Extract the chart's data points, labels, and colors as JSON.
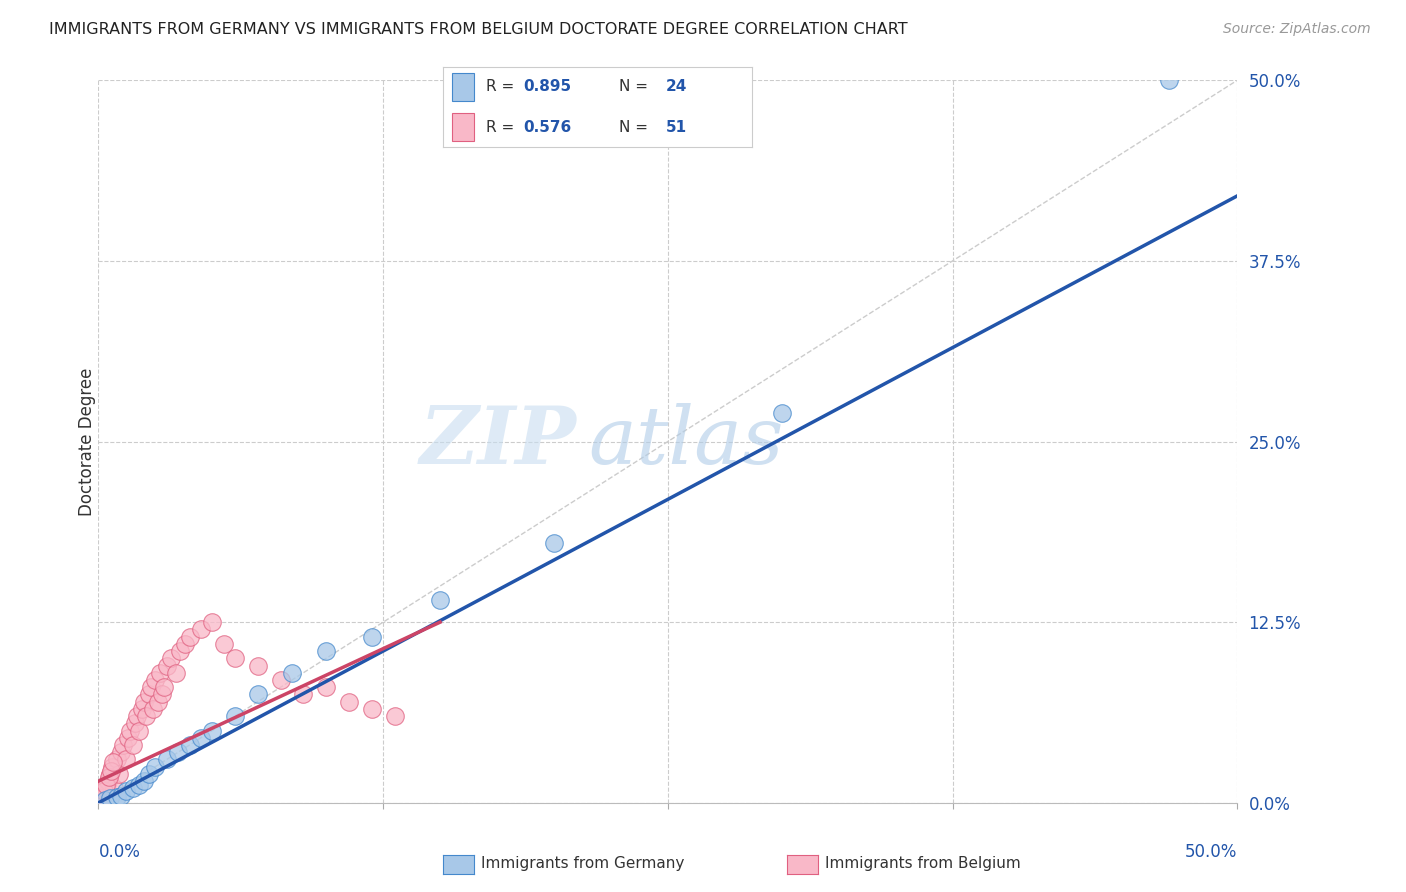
{
  "title": "IMMIGRANTS FROM GERMANY VS IMMIGRANTS FROM BELGIUM DOCTORATE DEGREE CORRELATION CHART",
  "source": "Source: ZipAtlas.com",
  "ylabel": "Doctorate Degree",
  "ytick_values": [
    0.0,
    12.5,
    25.0,
    37.5,
    50.0
  ],
  "xlim": [
    0.0,
    50.0
  ],
  "ylim": [
    0.0,
    50.0
  ],
  "germany_color": "#a8c8e8",
  "germany_edge_color": "#4488cc",
  "belgium_color": "#f9b8c8",
  "belgium_edge_color": "#e06080",
  "germany_line_color": "#2255aa",
  "belgium_line_color": "#cc4466",
  "diagonal_color": "#cccccc",
  "legend_label_germany": "Immigrants from Germany",
  "legend_label_belgium": "Immigrants from Belgium",
  "germany_scatter_x": [
    0.3,
    0.5,
    0.8,
    1.0,
    1.2,
    1.5,
    1.8,
    2.0,
    2.2,
    2.5,
    3.0,
    3.5,
    4.0,
    4.5,
    5.0,
    6.0,
    7.0,
    8.5,
    10.0,
    12.0,
    15.0,
    20.0,
    30.0,
    47.0
  ],
  "germany_scatter_y": [
    0.2,
    0.3,
    0.4,
    0.5,
    0.8,
    1.0,
    1.2,
    1.5,
    2.0,
    2.5,
    3.0,
    3.5,
    4.0,
    4.5,
    5.0,
    6.0,
    7.5,
    9.0,
    10.5,
    11.5,
    14.0,
    18.0,
    27.0,
    50.0
  ],
  "belgium_scatter_x": [
    0.2,
    0.3,
    0.4,
    0.5,
    0.6,
    0.7,
    0.8,
    0.9,
    1.0,
    1.1,
    1.2,
    1.3,
    1.4,
    1.5,
    1.6,
    1.7,
    1.8,
    1.9,
    2.0,
    2.1,
    2.2,
    2.3,
    2.4,
    2.5,
    2.6,
    2.7,
    2.8,
    2.9,
    3.0,
    3.2,
    3.4,
    3.6,
    3.8,
    4.0,
    4.5,
    5.0,
    5.5,
    6.0,
    7.0,
    8.0,
    9.0,
    10.0,
    11.0,
    12.0,
    13.0,
    0.15,
    0.25,
    0.35,
    0.45,
    0.55,
    0.65
  ],
  "belgium_scatter_y": [
    0.5,
    1.0,
    1.5,
    2.0,
    2.5,
    1.0,
    3.0,
    2.0,
    3.5,
    4.0,
    3.0,
    4.5,
    5.0,
    4.0,
    5.5,
    6.0,
    5.0,
    6.5,
    7.0,
    6.0,
    7.5,
    8.0,
    6.5,
    8.5,
    7.0,
    9.0,
    7.5,
    8.0,
    9.5,
    10.0,
    9.0,
    10.5,
    11.0,
    11.5,
    12.0,
    12.5,
    11.0,
    10.0,
    9.5,
    8.5,
    7.5,
    8.0,
    7.0,
    6.5,
    6.0,
    0.3,
    0.8,
    1.2,
    1.8,
    2.2,
    2.8
  ],
  "germany_line_x": [
    0.0,
    50.0
  ],
  "germany_line_y": [
    0.0,
    42.0
  ],
  "belgium_line_x": [
    0.0,
    15.0
  ],
  "belgium_line_y": [
    1.5,
    12.5
  ],
  "watermark_zip": "ZIP",
  "watermark_atlas": "atlas",
  "background_color": "#ffffff",
  "grid_color": "#cccccc",
  "axis_color": "#2255aa",
  "text_color": "#333333"
}
